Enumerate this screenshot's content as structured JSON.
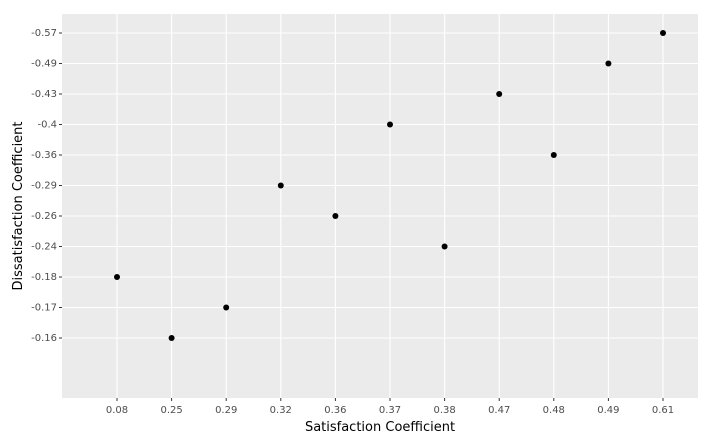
{
  "chart_data": {
    "type": "scatter",
    "scale": "discrete",
    "x_label": "Satisfaction Coefficient",
    "y_label": "Dissatisfaction Coefficient",
    "x": [
      0.08,
      0.25,
      0.29,
      0.32,
      0.36,
      0.37,
      0.38,
      0.47,
      0.48,
      0.49,
      0.61
    ],
    "values": [
      -0.18,
      -0.16,
      -0.17,
      -0.29,
      -0.26,
      -0.4,
      -0.24,
      -0.43,
      -0.36,
      -0.49,
      -0.57
    ],
    "color": "#000000",
    "xticks": [
      0.08,
      0.25,
      0.29,
      0.32,
      0.36,
      0.37,
      0.38,
      0.47,
      0.48,
      0.49,
      0.61
    ],
    "yticks": [
      -0.16,
      -0.17,
      -0.18,
      -0.24,
      -0.26,
      -0.29,
      -0.36,
      -0.4,
      -0.43,
      -0.49,
      -0.57
    ],
    "grid": true
  }
}
